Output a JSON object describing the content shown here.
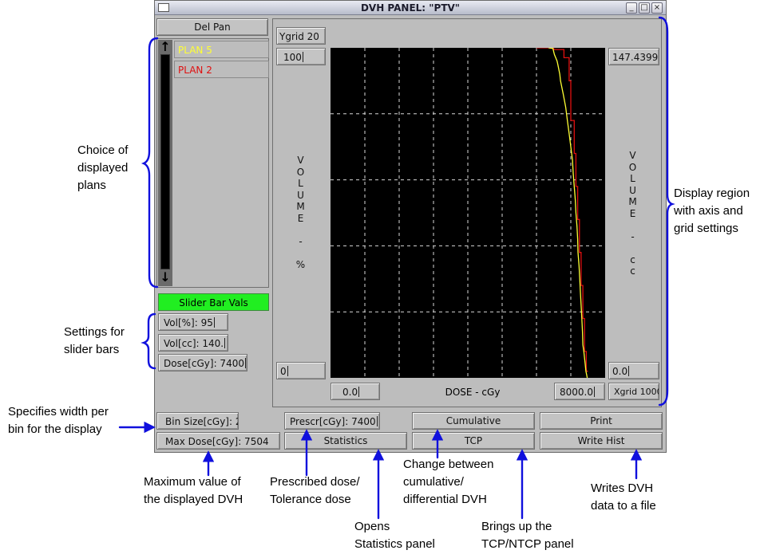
{
  "window": {
    "title": "DVH PANEL: \"PTV\"",
    "controls": {
      "minimize": "_",
      "maximize": "□",
      "close": "×"
    }
  },
  "left": {
    "del_pan": "Del Pan",
    "plans": [
      {
        "name": "PLAN 5",
        "color": "#ffff33"
      },
      {
        "name": "PLAN 2",
        "color": "#e01010"
      }
    ],
    "slider_bar_vals": "Slider Bar Vals",
    "vol_pct": "Vol[%]: 95",
    "vol_cc": "Vol[cc]: 140.",
    "dose": "Dose[cGy]: 7400"
  },
  "plot": {
    "ygrid": "Ygrid 20",
    "y_left_max": "100",
    "y_left_min": "0",
    "y_right_max": "147.4399",
    "y_right_min": "0.0",
    "x_min": "0.0",
    "x_max": "8000.0",
    "xgrid": "Xgrid 1000",
    "xlabel": "DOSE - cGy",
    "ylabel_left": "V\nO\nL\nU\nM\nE\n\n-\n\n%",
    "ylabel_right": "V\nO\nL\nU\nM\nE\n\n-\n\nc\nc"
  },
  "bottom": {
    "bin_size": "Bin Size[cGy]: 2",
    "max_dose": "Max Dose[cGy]: 7504",
    "prescr": "Prescr[cGy]: 7400",
    "statistics": "Statistics",
    "cumulative": "Cumulative",
    "tcp": "TCP",
    "print": "Print",
    "write_hist": "Write Hist"
  },
  "annotations": {
    "plans": "Choice of\ndisplayed\nplans",
    "slider": "Settings for\nslider bars",
    "bin": "Specifies width per\nbin for the display",
    "maxdose": "Maximum value of\nthe displayed DVH",
    "prescr": "Prescribed dose/\nTolerance dose",
    "statistics": "Opens\nStatistics panel",
    "cumulative": "Change between\ncumulative/\ndifferential DVH",
    "tcp": "Brings up the\nTCP/NTCP panel",
    "writehist": "Writes DVH\ndata to a file",
    "display": "Display region\nwith axis and\ngrid settings"
  },
  "chart_data": {
    "type": "line",
    "xlabel": "DOSE - cGy",
    "ylabel": "VOLUME - %",
    "xlim": [
      0,
      8000
    ],
    "ylim": [
      0,
      100
    ],
    "grid": true,
    "x_grid_step": 1000,
    "y_grid_step": 20,
    "series": [
      {
        "name": "PLAN 5",
        "color": "#ffff33",
        "x": [
          6350,
          6480,
          6520,
          6600,
          6620,
          6680,
          6700,
          6780,
          6850,
          6900,
          6950,
          7000,
          7050,
          7070,
          7100,
          7130,
          7150,
          7180,
          7200,
          7210,
          7240,
          7260,
          7280,
          7300,
          7320,
          7340,
          7350,
          7380,
          7400,
          7420,
          7440,
          7460,
          7480
        ],
        "y": [
          100,
          99.8,
          98,
          96,
          95,
          92,
          90,
          86,
          82,
          78,
          74,
          70,
          66,
          62,
          58,
          54,
          50,
          46,
          42,
          38,
          34,
          30,
          26,
          22,
          18,
          14,
          10,
          8,
          6,
          4,
          2,
          1,
          0
        ]
      },
      {
        "name": "PLAN 2",
        "color": "#e01010",
        "x": [
          6000,
          6500,
          6500,
          6800,
          6800,
          6950,
          6950,
          7000,
          7000,
          7100,
          7100,
          7150,
          7150,
          7200,
          7200,
          7250,
          7250,
          7300,
          7300,
          7350,
          7350,
          7400,
          7400,
          7450,
          7450,
          7500
        ],
        "y": [
          100,
          100,
          99.5,
          99.5,
          97,
          97,
          90,
          90,
          78,
          78,
          68,
          68,
          58,
          58,
          48,
          48,
          38,
          38,
          28,
          28,
          18,
          18,
          8,
          8,
          2,
          2
        ]
      }
    ]
  }
}
